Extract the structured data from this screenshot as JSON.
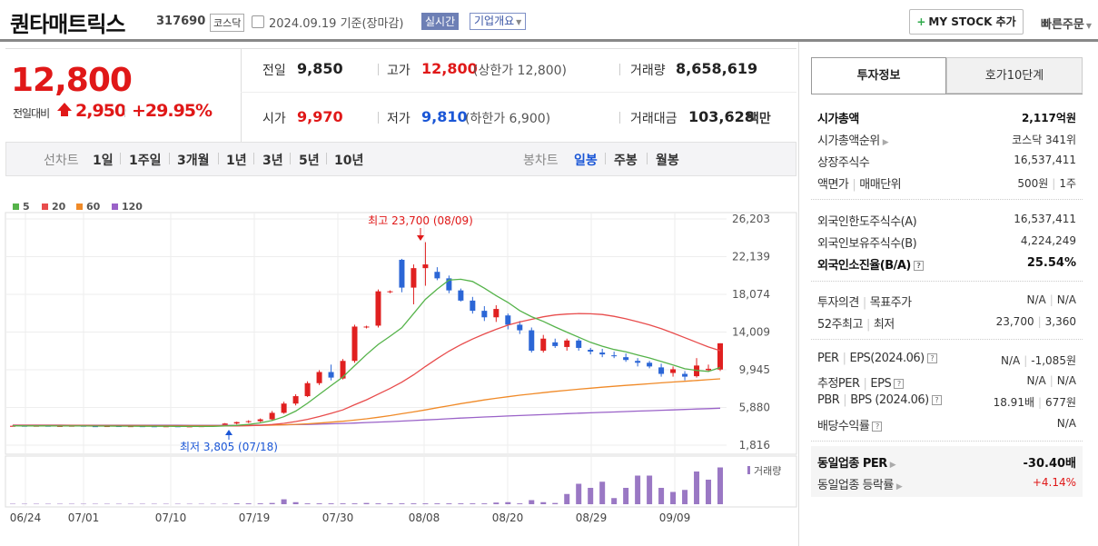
{
  "header": {
    "name": "퀀타매트릭스",
    "code": "317690",
    "market": "코스닥",
    "date": "2024.09.19 기준(장마감)",
    "realtime": "실시간",
    "overview": "기업개요",
    "mystock": "MY STOCK 추가",
    "quick_order": "빠른주문"
  },
  "price": {
    "current": "12,800",
    "diff_label": "전일대비",
    "diff_value": "2,950",
    "diff_rate": "+29.95%"
  },
  "info": {
    "prev_label": "전일",
    "prev": "9,850",
    "high_label": "고가",
    "high": "12,800",
    "high_sub": "(상한가 12,800)",
    "volume_label": "거래량",
    "volume": "8,658,619",
    "open_label": "시가",
    "open": "9,970",
    "low_label": "저가",
    "low": "9,810",
    "low_sub": "(하한가 6,900)",
    "amount_label": "거래대금",
    "amount": "103,628",
    "amount_unit": "백만"
  },
  "periods": {
    "line_label": "선차트",
    "line": [
      "1일",
      "1주일",
      "3개월",
      "1년",
      "3년",
      "5년",
      "10년"
    ],
    "candle_label": "봉차트",
    "candle": [
      "일봉",
      "주봉",
      "월봉"
    ],
    "active": "일봉"
  },
  "legend": [
    {
      "label": "5",
      "color": "#55b34a"
    },
    {
      "label": "20",
      "color": "#e84c4c"
    },
    {
      "label": "60",
      "color": "#f08a28"
    },
    {
      "label": "120",
      "color": "#9a62c8"
    }
  ],
  "chart_data": {
    "type": "candlestick",
    "y_ticks": [
      "26,203",
      "22,139",
      "18,074",
      "14,009",
      "9,945",
      "5,880",
      "1,816"
    ],
    "ylim": [
      1816,
      26203
    ],
    "x_ticks": [
      "06/24",
      "07/01",
      "07/10",
      "07/19",
      "07/30",
      "08/08",
      "08/20",
      "08/29",
      "09/09"
    ],
    "high_annotation": "최고 23,700 (08/09)",
    "low_annotation": "최저 3,805 (07/18)",
    "volume_label": "거래량",
    "candles": [
      [
        3900,
        3950,
        3850,
        3900
      ],
      [
        3900,
        3950,
        3850,
        3880
      ],
      [
        3880,
        3950,
        3850,
        3900
      ],
      [
        3900,
        3950,
        3850,
        3870
      ],
      [
        3870,
        3920,
        3830,
        3880
      ],
      [
        3880,
        3950,
        3850,
        3900
      ],
      [
        3900,
        3930,
        3840,
        3860
      ],
      [
        3860,
        3900,
        3820,
        3850
      ],
      [
        3850,
        3900,
        3820,
        3870
      ],
      [
        3870,
        3900,
        3830,
        3850
      ],
      [
        3850,
        3900,
        3820,
        3860
      ],
      [
        3860,
        3900,
        3830,
        3850
      ],
      [
        3850,
        3890,
        3820,
        3840
      ],
      [
        3840,
        3880,
        3810,
        3850
      ],
      [
        3850,
        3880,
        3805,
        3830
      ],
      [
        3830,
        3870,
        3810,
        3840
      ],
      [
        3840,
        3900,
        3810,
        3860
      ],
      [
        3860,
        4000,
        3830,
        3950
      ],
      [
        3950,
        4200,
        3900,
        4150
      ],
      [
        4150,
        4350,
        4050,
        4300
      ],
      [
        4300,
        4500,
        4200,
        4400
      ],
      [
        4400,
        4700,
        4300,
        4600
      ],
      [
        4600,
        5500,
        4500,
        5300
      ],
      [
        5300,
        6500,
        5200,
        6300
      ],
      [
        6300,
        7300,
        6100,
        7100
      ],
      [
        7100,
        8700,
        7000,
        8500
      ],
      [
        8500,
        9900,
        8300,
        9700
      ],
      [
        9700,
        10500,
        8800,
        9100
      ],
      [
        9000,
        11100,
        8900,
        10900
      ],
      [
        10900,
        14800,
        10700,
        14600
      ],
      [
        14600,
        14700,
        14400,
        14600
      ],
      [
        14700,
        18600,
        14500,
        18400
      ],
      [
        18400,
        18500,
        18200,
        18400
      ],
      [
        21800,
        21900,
        18300,
        18800
      ],
      [
        18800,
        21300,
        17000,
        20900
      ],
      [
        20900,
        23700,
        19000,
        21300
      ],
      [
        20500,
        21000,
        19600,
        19800
      ],
      [
        19800,
        20100,
        18200,
        18500
      ],
      [
        18500,
        18700,
        17300,
        17400
      ],
      [
        17400,
        17800,
        16000,
        16300
      ],
      [
        16300,
        16800,
        15200,
        15600
      ],
      [
        15600,
        16900,
        15100,
        16500
      ],
      [
        15800,
        16000,
        14300,
        14800
      ],
      [
        14800,
        15200,
        13800,
        14200
      ],
      [
        14200,
        14500,
        11800,
        12000
      ],
      [
        12000,
        13700,
        11800,
        13300
      ],
      [
        12900,
        13300,
        12300,
        12500
      ],
      [
        12400,
        13300,
        12000,
        13100
      ],
      [
        13100,
        13300,
        12000,
        12300
      ],
      [
        12100,
        12300,
        11600,
        11900
      ],
      [
        11800,
        12200,
        11300,
        11600
      ],
      [
        11500,
        11900,
        11200,
        11400
      ],
      [
        11300,
        11700,
        10800,
        11000
      ],
      [
        10900,
        11200,
        10300,
        10700
      ],
      [
        10700,
        10900,
        10100,
        10300
      ],
      [
        10200,
        10600,
        9200,
        9500
      ],
      [
        9600,
        10300,
        9200,
        10000
      ],
      [
        9500,
        9800,
        8800,
        9200
      ],
      [
        9250,
        11200,
        9100,
        10400
      ],
      [
        9900,
        10500,
        9700,
        10050
      ],
      [
        9970,
        12800,
        9810,
        12800
      ]
    ],
    "ma5": [
      3900,
      3895,
      3890,
      3890,
      3885,
      3885,
      3880,
      3876,
      3870,
      3864,
      3860,
      3857,
      3852,
      3850,
      3847,
      3843,
      3841,
      3845,
      3878,
      3950,
      4058,
      4220,
      4470,
      4880,
      5490,
      6330,
      7290,
      8230,
      9160,
      10390,
      11580,
      12680,
      13560,
      14470,
      16000,
      17540,
      18640,
      19620,
      19700,
      19460,
      18740,
      17940,
      17200,
      16320,
      15660,
      15160,
      14560,
      14000,
      13450,
      12900,
      12480,
      12130,
      11880,
      11540,
      11220,
      10840,
      10450,
      10050,
      9880,
      9760,
      10190
    ],
    "ma20": [
      3950,
      3945,
      3940,
      3935,
      3930,
      3925,
      3920,
      3915,
      3910,
      3905,
      3900,
      3895,
      3893,
      3890,
      3888,
      3885,
      3883,
      3882,
      3885,
      3895,
      3915,
      3960,
      4040,
      4170,
      4360,
      4600,
      4900,
      5240,
      5620,
      6170,
      6700,
      7320,
      7930,
      8600,
      9400,
      10300,
      11150,
      11950,
      12650,
      13260,
      13800,
      14300,
      14750,
      15100,
      15380,
      15650,
      15850,
      15950,
      16000,
      15980,
      15900,
      15700,
      15440,
      15130,
      14780,
      14370,
      13900,
      13400,
      12900,
      12400,
      12000
    ],
    "ma60": [
      3950,
      3948,
      3946,
      3944,
      3942,
      3940,
      3938,
      3936,
      3934,
      3932,
      3930,
      3928,
      3926,
      3924,
      3922,
      3920,
      3918,
      3918,
      3920,
      3925,
      3935,
      3950,
      3975,
      4010,
      4060,
      4120,
      4200,
      4290,
      4390,
      4520,
      4660,
      4820,
      5000,
      5200,
      5400,
      5620,
      5850,
      6070,
      6290,
      6490,
      6690,
      6870,
      7040,
      7200,
      7340,
      7480,
      7610,
      7730,
      7850,
      7960,
      8060,
      8160,
      8260,
      8350,
      8440,
      8530,
      8620,
      8700,
      8790,
      8880,
      8970
    ],
    "ma120": [
      3980,
      3979,
      3978,
      3977,
      3976,
      3975,
      3974,
      3973,
      3972,
      3971,
      3970,
      3969,
      3968,
      3967,
      3966,
      3965,
      3964,
      3963,
      3963,
      3965,
      3970,
      3978,
      3990,
      4005,
      4025,
      4050,
      4080,
      4115,
      4155,
      4200,
      4250,
      4300,
      4355,
      4410,
      4470,
      4535,
      4600,
      4665,
      4730,
      4790,
      4850,
      4905,
      4960,
      5010,
      5060,
      5110,
      5160,
      5210,
      5260,
      5305,
      5350,
      5395,
      5440,
      5485,
      5530,
      5575,
      5620,
      5665,
      5710,
      5755,
      5800
    ],
    "volumes": [
      0.01,
      0.01,
      0.01,
      0.01,
      0.01,
      0.01,
      0.01,
      0.01,
      0.01,
      0.01,
      0.01,
      0.01,
      0.01,
      0.01,
      0.01,
      0.01,
      0.01,
      0.01,
      0.01,
      0.02,
      0.02,
      0.02,
      0.03,
      0.12,
      0.05,
      0.02,
      0.02,
      0.02,
      0.02,
      0.02,
      0.03,
      0.02,
      0.02,
      0.02,
      0.02,
      0.02,
      0.02,
      0.02,
      0.02,
      0.02,
      0.02,
      0.04,
      0.05,
      0.02,
      0.1,
      0.05,
      0.03,
      0.25,
      0.5,
      0.4,
      0.55,
      0.15,
      0.4,
      0.7,
      0.7,
      0.4,
      0.3,
      0.35,
      0.8,
      0.6,
      0.9
    ]
  },
  "tabs": {
    "invest": "투자정보",
    "hoga": "호가10단계"
  },
  "invest": {
    "market_cap_label": "시가총액",
    "market_cap": "2,117억원",
    "rank_label": "시가총액순위",
    "rank": "코스닥 341위",
    "shares_label": "상장주식수",
    "shares": "16,537,411",
    "face_label": "액면가",
    "lot_label": "매매단위",
    "face": "500원",
    "lot": "1주",
    "foreign_limit_label": "외국인한도주식수(A)",
    "foreign_limit": "16,537,411",
    "foreign_hold_label": "외국인보유주식수(B)",
    "foreign_hold": "4,224,249",
    "foreign_rate_label": "외국인소진율(B/A)",
    "foreign_rate": "25.54%",
    "opinion_label": "투자의견",
    "target_label": "목표주가",
    "opinion": "N/A",
    "target": "N/A",
    "w52_high_label": "52주최고",
    "w52_low_label": "최저",
    "w52_high": "23,700",
    "w52_low": "3,360",
    "per_label": "PER",
    "eps_label": "EPS(2024.06)",
    "per": "N/A",
    "eps": "-1,085원",
    "eper_label": "추정PER",
    "eeps_label": "EPS",
    "eper": "N/A",
    "eeps": "N/A",
    "pbr_label": "PBR",
    "bps_label": "BPS (2024.06)",
    "pbr": "18.91배",
    "bps": "677원",
    "div_label": "배당수익률",
    "div": "N/A",
    "sector_per_label": "동일업종 PER",
    "sector_per": "-30.40배",
    "sector_rate_label": "동일업종 등락률",
    "sector_rate": "+4.14%"
  }
}
